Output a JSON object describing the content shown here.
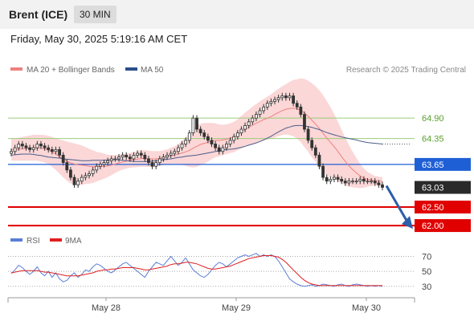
{
  "header": {
    "title": "Brent (ICE)",
    "timeframe": "30 MIN"
  },
  "timestamp": "Friday, May 30, 2025 5:19:16 AM CET",
  "legend": {
    "ma20": {
      "label": "MA 20 + Bollinger Bands",
      "color": "#f08080"
    },
    "ma50": {
      "label": "MA 50",
      "color": "#2b4f8c"
    },
    "rsi": {
      "label": "RSI",
      "color": "#5b7fd6"
    },
    "rsi_ma": {
      "label": "9MA",
      "color": "#e02020"
    }
  },
  "copyright": "Research © 2025 Trading Central",
  "chart_data": [
    {
      "type": "candlestick",
      "x_ticks": [
        "May 28",
        "May 29",
        "May 30"
      ],
      "price_levels": [
        {
          "label": "64.90",
          "value": 64.9,
          "kind": "resistance",
          "color": "#9acd7a"
        },
        {
          "label": "64.35",
          "value": 64.35,
          "kind": "resistance",
          "color": "#9acd7a"
        },
        {
          "label": "63.65",
          "value": 63.65,
          "kind": "pivot",
          "color": "#1f5fd6"
        },
        {
          "label": "63.03",
          "value": 63.03,
          "kind": "last",
          "color": "#2a2a2a"
        },
        {
          "label": "62.50",
          "value": 62.5,
          "kind": "support",
          "color": "#e00000"
        },
        {
          "label": "62.00",
          "value": 62.0,
          "kind": "support",
          "color": "#e00000"
        }
      ],
      "close": [
        64.0,
        64.1,
        64.2,
        64.15,
        64.1,
        64.05,
        64.1,
        64.2,
        64.15,
        64.1,
        64.05,
        64.0,
        64.05,
        63.9,
        63.7,
        63.5,
        63.3,
        63.1,
        63.2,
        63.3,
        63.35,
        63.4,
        63.5,
        63.6,
        63.65,
        63.7,
        63.75,
        63.8,
        63.8,
        63.85,
        63.9,
        63.85,
        63.8,
        63.9,
        63.95,
        63.9,
        63.8,
        63.7,
        63.6,
        63.7,
        63.8,
        63.85,
        63.9,
        63.95,
        64.0,
        64.1,
        64.2,
        64.3,
        64.5,
        64.9,
        64.6,
        64.5,
        64.4,
        64.3,
        64.2,
        64.1,
        64.0,
        64.1,
        64.2,
        64.3,
        64.4,
        64.5,
        64.6,
        64.7,
        64.8,
        64.9,
        65.0,
        65.1,
        65.2,
        65.3,
        65.35,
        65.4,
        65.45,
        65.5,
        65.45,
        65.5,
        65.3,
        65.2,
        65.0,
        64.6,
        64.3,
        64.1,
        63.9,
        63.6,
        63.3,
        63.2,
        63.25,
        63.3,
        63.25,
        63.2,
        63.15,
        63.2,
        63.2,
        63.2,
        63.25,
        63.2,
        63.2,
        63.2,
        63.15,
        63.1,
        63.03
      ],
      "ma20": [
        64.05,
        64.05,
        64.06,
        64.07,
        64.08,
        64.09,
        64.1,
        64.1,
        64.09,
        64.07,
        64.04,
        63.99,
        63.93,
        63.86,
        63.8,
        63.74,
        63.69,
        63.66,
        63.64,
        63.63,
        63.62,
        63.6,
        63.59,
        63.59,
        63.6,
        63.6,
        63.61,
        63.63,
        63.66,
        63.69,
        63.72,
        63.74,
        63.76,
        63.78,
        63.79,
        63.81,
        63.81,
        63.8,
        63.8,
        63.8,
        63.81,
        63.83,
        63.85,
        63.88,
        63.9,
        63.93,
        63.96,
        63.99,
        64.03,
        64.09,
        64.14,
        64.19,
        64.22,
        64.25,
        64.28,
        64.3,
        64.3,
        64.31,
        64.33,
        64.36,
        64.39,
        64.45,
        64.52,
        64.59,
        64.65,
        64.71,
        64.76,
        64.81,
        64.86,
        64.9,
        64.94,
        65.0,
        65.05,
        65.1,
        65.14,
        65.16,
        65.17,
        65.15,
        65.11,
        65.04,
        64.95,
        64.84,
        64.74,
        64.62,
        64.49,
        64.36,
        64.25,
        64.13,
        64.0,
        63.86,
        63.73,
        63.61,
        63.51,
        63.42,
        63.34,
        63.28,
        63.25,
        63.23,
        63.21,
        63.2,
        63.19
      ],
      "ma50": [
        63.9,
        63.91,
        63.92,
        63.93,
        63.93,
        63.93,
        63.92,
        63.9,
        63.89,
        63.87,
        63.85,
        63.84,
        63.83,
        63.82,
        63.8,
        63.79,
        63.78,
        63.77,
        63.76,
        63.75,
        63.75,
        63.75,
        63.76,
        63.76,
        63.76,
        63.76,
        63.77,
        63.78,
        63.78,
        63.77,
        63.76,
        63.75,
        63.74,
        63.73,
        63.73,
        63.73,
        63.73,
        63.73,
        63.74,
        63.75,
        63.76,
        63.77,
        63.79,
        63.8,
        63.82,
        63.84,
        63.85,
        63.87,
        63.88,
        63.89,
        63.9,
        63.92,
        63.94,
        63.96,
        63.98,
        64.0,
        64.02,
        64.04,
        64.05,
        64.06,
        64.07,
        64.09,
        64.11,
        64.14,
        64.17,
        64.2,
        64.23,
        64.27,
        64.31,
        64.36,
        64.41,
        64.47,
        64.53,
        64.58,
        64.63,
        64.66,
        64.69,
        64.7,
        64.7,
        64.69,
        64.67,
        64.65,
        64.62,
        64.59,
        64.55,
        64.51,
        64.48,
        64.45,
        64.42,
        64.39,
        64.37,
        64.35,
        64.33,
        64.31,
        64.28,
        64.26,
        64.24,
        64.23,
        64.22,
        64.21,
        64.2
      ],
      "bb_width": [
        0.3,
        0.3,
        0.31,
        0.32,
        0.33,
        0.34,
        0.35,
        0.35,
        0.36,
        0.37,
        0.38,
        0.4,
        0.43,
        0.46,
        0.5,
        0.53,
        0.55,
        0.56,
        0.55,
        0.53,
        0.5,
        0.47,
        0.44,
        0.4,
        0.37,
        0.34,
        0.3,
        0.27,
        0.24,
        0.22,
        0.21,
        0.2,
        0.2,
        0.21,
        0.21,
        0.22,
        0.22,
        0.22,
        0.21,
        0.21,
        0.2,
        0.2,
        0.21,
        0.22,
        0.24,
        0.27,
        0.32,
        0.38,
        0.45,
        0.52,
        0.56,
        0.56,
        0.55,
        0.52,
        0.49,
        0.46,
        0.43,
        0.41,
        0.4,
        0.4,
        0.41,
        0.42,
        0.44,
        0.46,
        0.48,
        0.5,
        0.52,
        0.54,
        0.56,
        0.58,
        0.6,
        0.62,
        0.64,
        0.66,
        0.68,
        0.72,
        0.76,
        0.8,
        0.86,
        0.92,
        0.96,
        1.0,
        1.02,
        1.03,
        1.03,
        1.0,
        0.95,
        0.88,
        0.8,
        0.72,
        0.64,
        0.56,
        0.48,
        0.4,
        0.33,
        0.26,
        0.2,
        0.16,
        0.13,
        0.12,
        0.12
      ],
      "last_price": 63.03,
      "forecast_target": 62.0,
      "ylim": [
        61.85,
        65.9
      ]
    },
    {
      "type": "line",
      "series": [
        "RSI",
        "9MA"
      ],
      "rsi": [
        47,
        52,
        58,
        55,
        50,
        46,
        50,
        56,
        48,
        44,
        50,
        42,
        48,
        40,
        36,
        38,
        44,
        48,
        42,
        46,
        52,
        50,
        56,
        60,
        58,
        54,
        50,
        48,
        52,
        56,
        60,
        62,
        58,
        54,
        50,
        46,
        42,
        50,
        56,
        62,
        60,
        58,
        64,
        70,
        64,
        58,
        62,
        68,
        60,
        52,
        48,
        44,
        42,
        46,
        52,
        58,
        62,
        60,
        56,
        60,
        64,
        68,
        70,
        72,
        70,
        72,
        74,
        70,
        72,
        70,
        72,
        70,
        64,
        56,
        48,
        40,
        36,
        33,
        31,
        30,
        31,
        32,
        30,
        31,
        33,
        32,
        31,
        30,
        32,
        33,
        31,
        30,
        32,
        33,
        32,
        31,
        30,
        31,
        30,
        31,
        30
      ],
      "rsi_ma": [
        48,
        49,
        50,
        51,
        51,
        51,
        51,
        51,
        50,
        49,
        49,
        48,
        47,
        46,
        45,
        44,
        44,
        44,
        44,
        45,
        46,
        47,
        48,
        50,
        51,
        52,
        52,
        53,
        53,
        54,
        55,
        55,
        55,
        55,
        54,
        53,
        52,
        52,
        53,
        54,
        55,
        56,
        57,
        59,
        60,
        60,
        61,
        62,
        62,
        61,
        60,
        58,
        56,
        54,
        53,
        53,
        54,
        55,
        56,
        57,
        59,
        61,
        63,
        65,
        67,
        68,
        69,
        70,
        71,
        71,
        71,
        70,
        69,
        66,
        62,
        57,
        52,
        47,
        42,
        38,
        35,
        33,
        32,
        31,
        31,
        31,
        31,
        31,
        31,
        31,
        31,
        31,
        31,
        31,
        31,
        31,
        31,
        31,
        31,
        31,
        31
      ],
      "y_ticks": [
        "70",
        "50",
        "30"
      ],
      "ylim": [
        18,
        78
      ]
    }
  ]
}
